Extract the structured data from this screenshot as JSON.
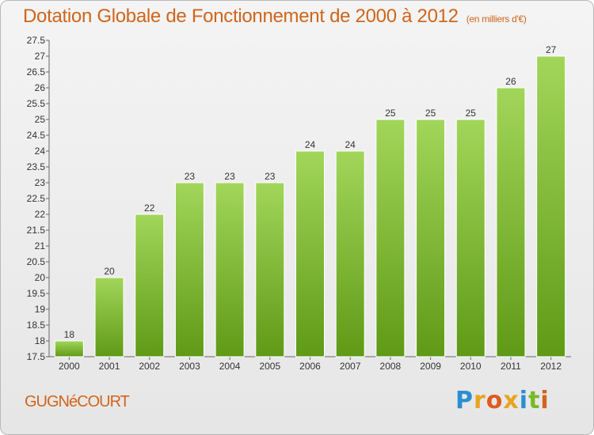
{
  "header": {
    "title": "Dotation Globale de Fonctionnement de 2000 à 2012",
    "subtitle": "(en milliers d'€)"
  },
  "footer": {
    "commune": "GUGNéCOURT",
    "logo_letters": [
      "P",
      "r",
      "o",
      "x",
      "i",
      "t",
      "i"
    ],
    "logo_colors": [
      "#2a8fd0",
      "#e8a520",
      "#e05a1c",
      "#e8a520",
      "#2a8fd0",
      "#7ab828",
      "#d0651c"
    ]
  },
  "colors": {
    "bar_light": "#a2d65a",
    "bar_dark": "#5f9a16",
    "title": "#d0651c"
  },
  "chart_data": {
    "type": "bar",
    "title": "Dotation Globale de Fonctionnement de 2000 à 2012",
    "subtitle": "(en milliers d'€)",
    "categories": [
      "2000",
      "2001",
      "2002",
      "2003",
      "2004",
      "2005",
      "2006",
      "2007",
      "2008",
      "2009",
      "2010",
      "2011",
      "2012"
    ],
    "values": [
      18,
      20,
      22,
      23,
      23,
      23,
      24,
      24,
      25,
      25,
      25,
      26,
      27
    ],
    "ylim": [
      17.5,
      27.5
    ],
    "yticks": [
      "17.5",
      "18",
      "18.5",
      "19",
      "19.5",
      "20",
      "20.5",
      "21",
      "21.5",
      "22",
      "22.5",
      "23",
      "23.5",
      "24",
      "24.5",
      "25",
      "25.5",
      "26",
      "26.5",
      "27",
      "27.5"
    ],
    "grid": false,
    "legend": "none"
  }
}
